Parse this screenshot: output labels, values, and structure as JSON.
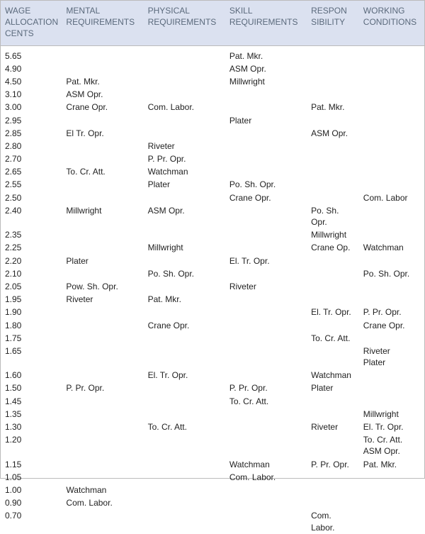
{
  "table": {
    "type": "table",
    "header_bg": "#dbe1f0",
    "header_color": "#5b6a7c",
    "text_color": "#222222",
    "border_color": "#bbbbbb",
    "font_family": "Arial",
    "font_size": 12,
    "columns": [
      "WAGE\nALLOCATION\nCENTS",
      "MENTAL\nREQUIREMENTS",
      "PHYSICAL\nREQUIREMENTS",
      "SKILL\nREQUIREMENTS",
      "RESPON\nSIBILITY",
      "WORKING\nCONDITIONS"
    ],
    "col_widths_pct": [
      15,
      20,
      20,
      20,
      12.8,
      16
    ],
    "rows": [
      [
        "5.65",
        "",
        "",
        "Pat. Mkr.",
        "",
        ""
      ],
      [
        "4.90",
        "",
        "",
        "ASM Opr.",
        "",
        ""
      ],
      [
        "4.50",
        "Pat. Mkr.",
        "",
        "Millwright",
        "",
        ""
      ],
      [
        "3.10",
        "ASM Opr.",
        "",
        "",
        "",
        ""
      ],
      [
        "3.00",
        "Crane Opr.",
        "Com. Labor.",
        "",
        "Pat. Mkr.",
        ""
      ],
      [
        "2.95",
        "",
        "",
        "Plater",
        "",
        ""
      ],
      [
        "2.85",
        "El Tr. Opr.",
        "",
        "",
        "ASM Opr.",
        ""
      ],
      [
        "2.80",
        "",
        "Riveter",
        "",
        "",
        ""
      ],
      [
        "2.70",
        "",
        "P. Pr. Opr.",
        "",
        "",
        ""
      ],
      [
        "2.65",
        "To. Cr. Att.",
        "Watchman",
        "",
        "",
        ""
      ],
      [
        "2.55",
        "",
        "Plater",
        "Po. Sh. Opr.",
        "",
        ""
      ],
      [
        "2.50",
        "",
        "",
        "Crane Opr.",
        "",
        "Com. Labor"
      ],
      [
        "2.40",
        "Millwright",
        "ASM Opr.",
        "",
        "Po. Sh.\nOpr.",
        ""
      ],
      [
        "2.35",
        "",
        "",
        "",
        "Millwright",
        ""
      ],
      [
        "2.25",
        "",
        "Millwright",
        "",
        "Crane Op.",
        "Watchman"
      ],
      [
        "2.20",
        "Plater",
        "",
        "El. Tr. Opr.",
        "",
        ""
      ],
      [
        "2.10",
        "",
        "Po. Sh. Opr.",
        "",
        "",
        "Po. Sh. Opr."
      ],
      [
        "2.05",
        "Pow. Sh. Opr.",
        "",
        "Riveter",
        "",
        ""
      ],
      [
        "1.95",
        "Riveter",
        "Pat. Mkr.",
        "",
        "",
        ""
      ],
      [
        "1.90",
        "",
        "",
        "",
        "El. Tr. Opr.",
        "P. Pr. Opr."
      ],
      [
        "1.80",
        "",
        "Crane Opr.",
        "",
        "",
        "Crane Opr."
      ],
      [
        "1.75",
        "",
        "",
        "",
        "To. Cr. Att.",
        ""
      ],
      [
        "1.65",
        "",
        "",
        "",
        "",
        "Riveter\nPlater"
      ],
      [
        "1.60",
        "",
        "El. Tr. Opr.",
        "",
        "Watchman",
        ""
      ],
      [
        "1.50",
        "P. Pr. Opr.",
        "",
        "P. Pr. Opr.",
        "Plater",
        ""
      ],
      [
        "1.45",
        "",
        "",
        "To. Cr. Att.",
        "",
        ""
      ],
      [
        "1.35",
        "",
        "",
        "",
        "",
        "Millwright"
      ],
      [
        "1.30",
        "",
        "To. Cr. Att.",
        "",
        "Riveter",
        "El. Tr. Opr."
      ],
      [
        "1.20",
        "",
        "",
        "",
        "",
        "To. Cr. Att.\nASM Opr."
      ],
      [
        "1.15",
        "",
        "",
        "Watchman",
        "P. Pr. Opr.",
        "Pat. Mkr."
      ],
      [
        "1.05",
        "",
        "",
        "Com. Labor.",
        "",
        ""
      ],
      [
        "1.00",
        "Watchman",
        "",
        "",
        "",
        ""
      ],
      [
        "0.90",
        "Com. Labor.",
        "",
        "",
        "",
        ""
      ],
      [
        "0.70",
        "",
        "",
        "",
        "Com.\nLabor.",
        ""
      ]
    ]
  }
}
